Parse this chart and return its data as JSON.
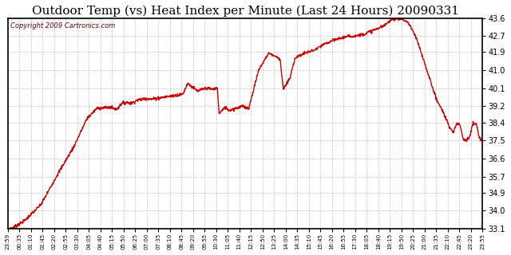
{
  "title": "Outdoor Temp (vs) Heat Index per Minute (Last 24 Hours) 20090331",
  "copyright": "Copyright 2009 Cartronics.com",
  "yticks": [
    33.1,
    34.0,
    34.9,
    35.7,
    36.6,
    37.5,
    38.4,
    39.2,
    40.1,
    41.0,
    41.9,
    42.7,
    43.6
  ],
  "ymin": 33.1,
  "ymax": 43.6,
  "line_color": "#cc0000",
  "bg_color": "#ffffff",
  "grid_color": "#bbbbbb",
  "title_fontsize": 11,
  "copyright_fontsize": 6,
  "xtick_labels": [
    "23:59",
    "00:35",
    "01:10",
    "01:45",
    "02:20",
    "02:55",
    "03:30",
    "04:05",
    "04:40",
    "05:15",
    "05:50",
    "06:25",
    "07:00",
    "07:35",
    "08:10",
    "08:45",
    "09:20",
    "09:55",
    "10:30",
    "11:05",
    "11:40",
    "12:15",
    "12:50",
    "13:25",
    "14:00",
    "14:35",
    "15:10",
    "15:45",
    "16:20",
    "16:55",
    "17:30",
    "18:05",
    "18:40",
    "19:15",
    "19:50",
    "20:25",
    "21:00",
    "21:35",
    "22:10",
    "22:45",
    "23:20",
    "23:55"
  ],
  "keypoints": [
    [
      0,
      33.1
    ],
    [
      15,
      33.15
    ],
    [
      50,
      33.5
    ],
    [
      100,
      34.3
    ],
    [
      150,
      35.8
    ],
    [
      200,
      37.2
    ],
    [
      240,
      38.6
    ],
    [
      270,
      39.1
    ],
    [
      310,
      39.15
    ],
    [
      330,
      39.05
    ],
    [
      345,
      39.35
    ],
    [
      360,
      39.4
    ],
    [
      375,
      39.35
    ],
    [
      390,
      39.5
    ],
    [
      405,
      39.55
    ],
    [
      420,
      39.6
    ],
    [
      435,
      39.55
    ],
    [
      450,
      39.6
    ],
    [
      470,
      39.65
    ],
    [
      490,
      39.7
    ],
    [
      510,
      39.75
    ],
    [
      530,
      39.8
    ],
    [
      545,
      40.35
    ],
    [
      560,
      40.15
    ],
    [
      575,
      39.95
    ],
    [
      590,
      40.05
    ],
    [
      605,
      40.1
    ],
    [
      620,
      40.05
    ],
    [
      635,
      40.1
    ],
    [
      640,
      38.85
    ],
    [
      660,
      39.15
    ],
    [
      670,
      39.0
    ],
    [
      690,
      39.1
    ],
    [
      710,
      39.2
    ],
    [
      730,
      39.1
    ],
    [
      760,
      41.0
    ],
    [
      790,
      41.85
    ],
    [
      810,
      41.7
    ],
    [
      825,
      41.55
    ],
    [
      835,
      40.05
    ],
    [
      855,
      40.6
    ],
    [
      870,
      41.6
    ],
    [
      900,
      41.85
    ],
    [
      930,
      42.0
    ],
    [
      960,
      42.3
    ],
    [
      990,
      42.5
    ],
    [
      1020,
      42.65
    ],
    [
      1050,
      42.7
    ],
    [
      1080,
      42.8
    ],
    [
      1110,
      43.0
    ],
    [
      1140,
      43.2
    ],
    [
      1160,
      43.5
    ],
    [
      1175,
      43.6
    ],
    [
      1195,
      43.55
    ],
    [
      1210,
      43.4
    ],
    [
      1220,
      43.2
    ],
    [
      1240,
      42.5
    ],
    [
      1270,
      41.0
    ],
    [
      1300,
      39.5
    ],
    [
      1320,
      38.9
    ],
    [
      1330,
      38.5
    ],
    [
      1340,
      38.1
    ],
    [
      1350,
      37.9
    ],
    [
      1360,
      38.35
    ],
    [
      1370,
      38.3
    ],
    [
      1380,
      37.6
    ],
    [
      1390,
      37.5
    ],
    [
      1400,
      37.7
    ],
    [
      1410,
      38.35
    ],
    [
      1420,
      38.3
    ],
    [
      1430,
      37.55
    ],
    [
      1439,
      37.5
    ]
  ]
}
